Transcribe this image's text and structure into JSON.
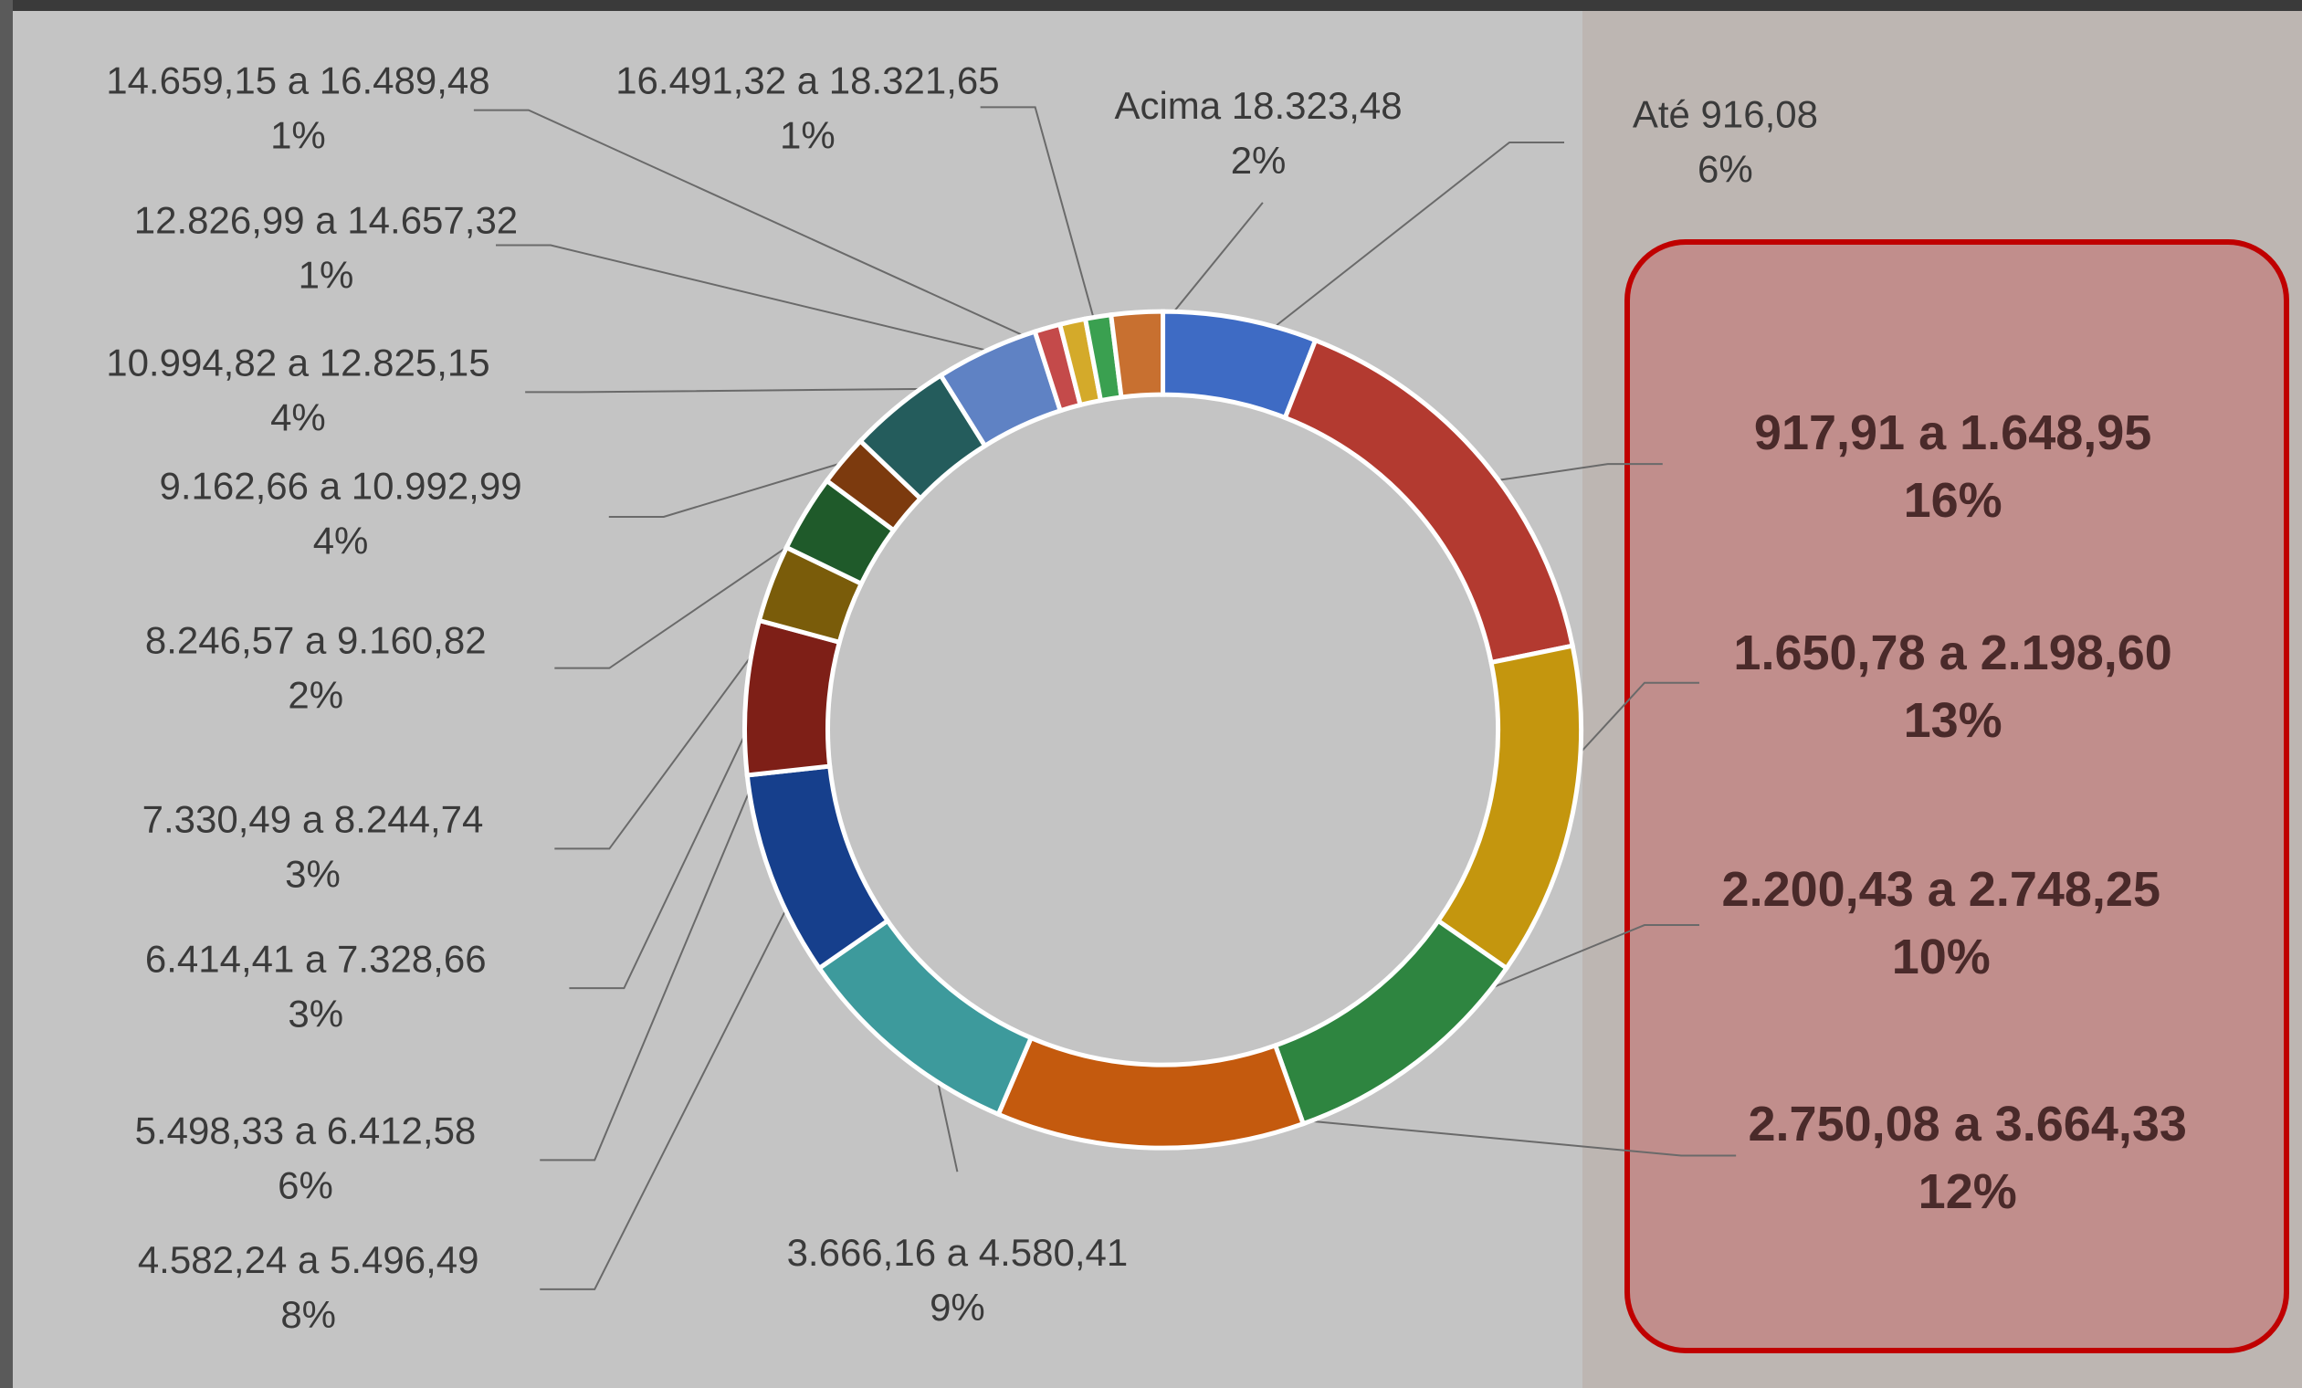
{
  "chart_data": {
    "type": "donut",
    "categories": [
      "Até 916,08",
      "917,91 a  1.648,95",
      "1.650,78 a 2.198,60",
      "2.200,43 a 2.748,25",
      "2.750,08 a 3.664,33",
      "3.666,16 a 4.580,41",
      "4.582,24 a 5.496,49",
      "5.498,33 a 6.412,58",
      "6.414,41 a 7.328,66",
      "7.330,49 a 8.244,74",
      "8.246,57 a 9.160,82",
      "9.162,66 a 10.992,99",
      "10.994,82 a 12.825,15",
      "12.826,99 a 14.657,32",
      "14.659,15 a 16.489,48",
      "16.491,32 a 18.321,65",
      "Acima  18.323,48"
    ],
    "values": [
      6,
      16,
      13,
      10,
      12,
      9,
      8,
      6,
      3,
      3,
      2,
      4,
      4,
      1,
      1,
      1,
      2
    ],
    "value_labels": [
      "6%",
      "16%",
      "13%",
      "10%",
      "12%",
      "9%",
      "8%",
      "6%",
      "3%",
      "3%",
      "2%",
      "4%",
      "4%",
      "1%",
      "1%",
      "1%",
      "2%"
    ],
    "colors": [
      "#3e6bc4",
      "#b33a30",
      "#c4960e",
      "#2e8540",
      "#c45a0e",
      "#3d9a9c",
      "#163f8c",
      "#7e1f17",
      "#7a5c0a",
      "#1f5a2a",
      "#7c3a0e",
      "#245c5c",
      "#5f82c4",
      "#c44a4a",
      "#d4aa2a",
      "#3aa050",
      "#c87030"
    ]
  }
}
